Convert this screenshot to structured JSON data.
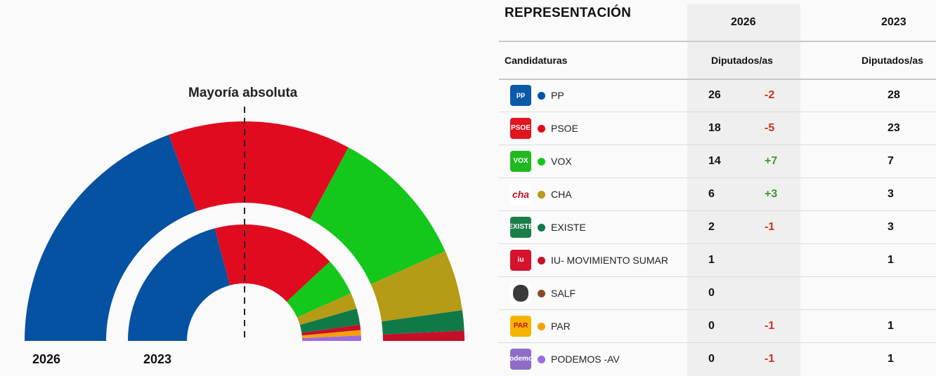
{
  "chart_data": {
    "type": "hemicycle",
    "title": "Mayoría absoluta",
    "majority_line": true,
    "rings": [
      {
        "label": "2026",
        "total": 67
      },
      {
        "label": "2023",
        "total": 67
      }
    ],
    "series": [
      {
        "name": "PP",
        "color": "#0552a3",
        "seats_2026": 26,
        "seats_2023": 28
      },
      {
        "name": "PSOE",
        "color": "#e00b1f",
        "seats_2026": 18,
        "seats_2023": 23
      },
      {
        "name": "VOX",
        "color": "#13c71b",
        "seats_2026": 14,
        "seats_2023": 7
      },
      {
        "name": "CHA",
        "color": "#b59b16",
        "seats_2026": 6,
        "seats_2023": 3
      },
      {
        "name": "EXISTE",
        "color": "#0f7a48",
        "seats_2026": 2,
        "seats_2023": 3
      },
      {
        "name": "IU- MOVIMIENTO SUMAR",
        "color": "#c70f2a",
        "seats_2026": 1,
        "seats_2023": 1
      },
      {
        "name": "SALF",
        "color": "#8b4a2a",
        "seats_2026": 0,
        "seats_2023": 0
      },
      {
        "name": "PAR",
        "color": "#f6a10c",
        "seats_2026": 0,
        "seats_2023": 1
      },
      {
        "name": "PODEMOS -AV",
        "color": "#9b6be0",
        "seats_2026": 0,
        "seats_2023": 1
      }
    ]
  },
  "table": {
    "title": "REPRESENTACIÓN",
    "year_2026": "2026",
    "year_2023": "2023",
    "col_candidaturas": "Candidaturas",
    "col_diputados_2026": "Diputados/as",
    "col_diputados_2023": "Diputados/as",
    "rows": [
      {
        "name": "PP",
        "seats_2026": "26",
        "diff": "-2",
        "diff_color": "#d0311c",
        "seats_2023": "28",
        "logo_text": "pp",
        "logo_bg": "#0a5aa8",
        "dot": "#0552a3"
      },
      {
        "name": "PSOE",
        "seats_2026": "18",
        "diff": "-5",
        "diff_color": "#d0311c",
        "seats_2023": "23",
        "logo_text": "PSOE",
        "logo_bg": "#e2141e",
        "dot": "#e00b1f"
      },
      {
        "name": "VOX",
        "seats_2026": "14",
        "diff": "+7",
        "diff_color": "#3c9a2b",
        "seats_2023": "7",
        "logo_text": "VOX",
        "logo_bg": "#22b820",
        "dot": "#13c71b"
      },
      {
        "name": "CHA",
        "seats_2026": "6",
        "diff": "+3",
        "diff_color": "#3c9a2b",
        "seats_2023": "3",
        "logo_text": "cha",
        "logo_bg": "#ffffff",
        "dot": "#b59b16"
      },
      {
        "name": "EXISTE",
        "seats_2026": "2",
        "diff": "-1",
        "diff_color": "#d0311c",
        "seats_2023": "3",
        "logo_text": "EXISTE",
        "logo_bg": "#1b7d48",
        "dot": "#0f7a48"
      },
      {
        "name": "IU- MOVIMIENTO SUMAR",
        "seats_2026": "1",
        "diff": "",
        "diff_color": "#d0311c",
        "seats_2023": "1",
        "logo_text": "iu",
        "logo_bg": "#d4132c",
        "dot": "#c70f2a"
      },
      {
        "name": "SALF",
        "seats_2026": "0",
        "diff": "",
        "diff_color": "#d0311c",
        "seats_2023": "",
        "logo_text": "",
        "logo_bg": "#ffffff",
        "dot": "#8b4a2a"
      },
      {
        "name": "PAR",
        "seats_2026": "0",
        "diff": "-1",
        "diff_color": "#d0311c",
        "seats_2023": "1",
        "logo_text": "PAR",
        "logo_bg": "#ffffff",
        "dot": "#f6a10c"
      },
      {
        "name": "PODEMOS -AV",
        "seats_2026": "0",
        "diff": "-1",
        "diff_color": "#d0311c",
        "seats_2023": "1",
        "logo_text": "Podemos",
        "logo_bg": "#8e6cc8",
        "dot": "#9b6be0"
      }
    ]
  }
}
